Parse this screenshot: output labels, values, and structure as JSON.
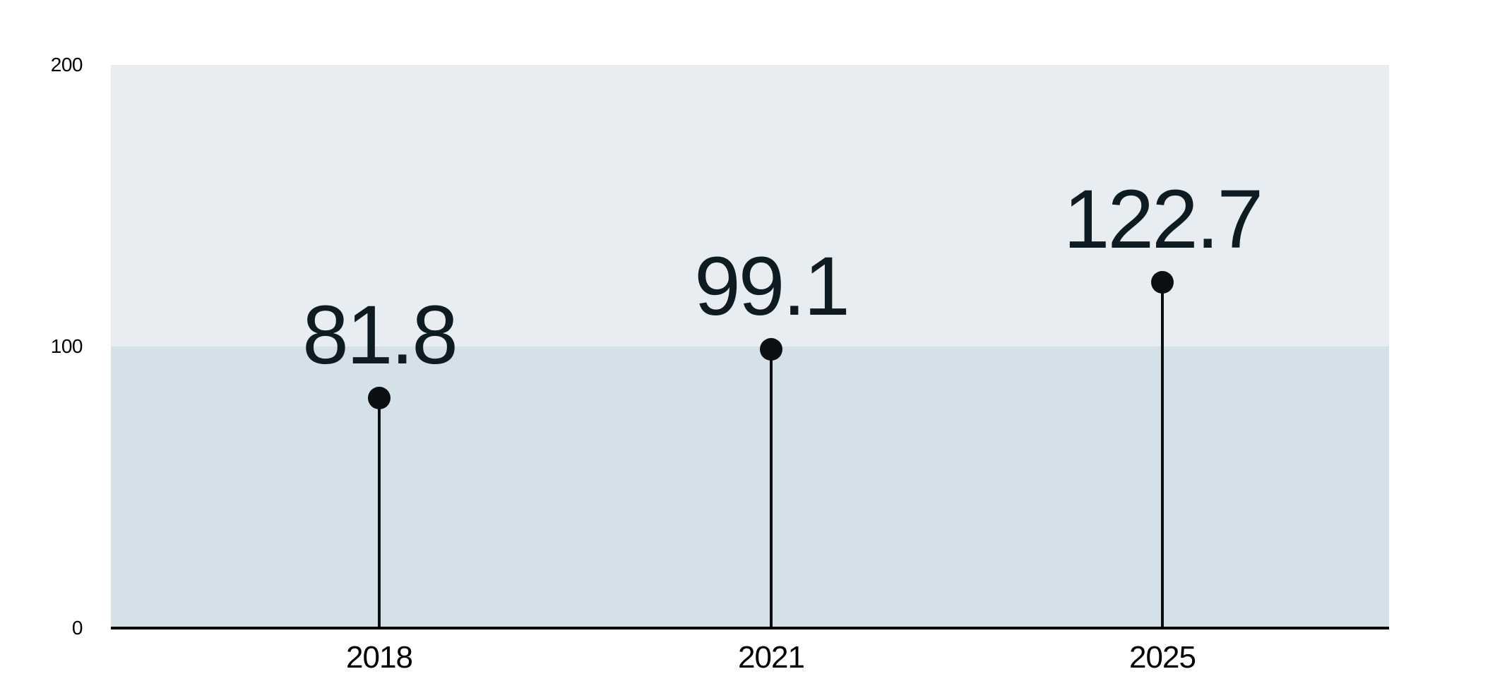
{
  "chart_data": {
    "type": "lollipop",
    "title": "",
    "xlabel": "",
    "ylabel": "",
    "categories": [
      "2018",
      "2021",
      "2025"
    ],
    "values": [
      81.8,
      99.1,
      122.7
    ],
    "value_labels": [
      "81.8",
      "99.1",
      "122.7"
    ],
    "ylim": [
      0,
      200
    ],
    "yticks": [
      0,
      100,
      200
    ],
    "ytick_labels": [
      "0",
      "100",
      "200"
    ],
    "grid": "off",
    "legend": "none",
    "bands": [
      {
        "from": 0,
        "to": 100,
        "color": "#d4e1e8"
      },
      {
        "from": 100,
        "to": 200,
        "color": "#e7edf1"
      }
    ],
    "colors": {
      "background": "#ffffff",
      "stem": "#0b0f12",
      "marker": "#0b0f12",
      "value_label": "#0f1b22",
      "axis_line": "#000000",
      "tick_text": "#000000"
    }
  }
}
